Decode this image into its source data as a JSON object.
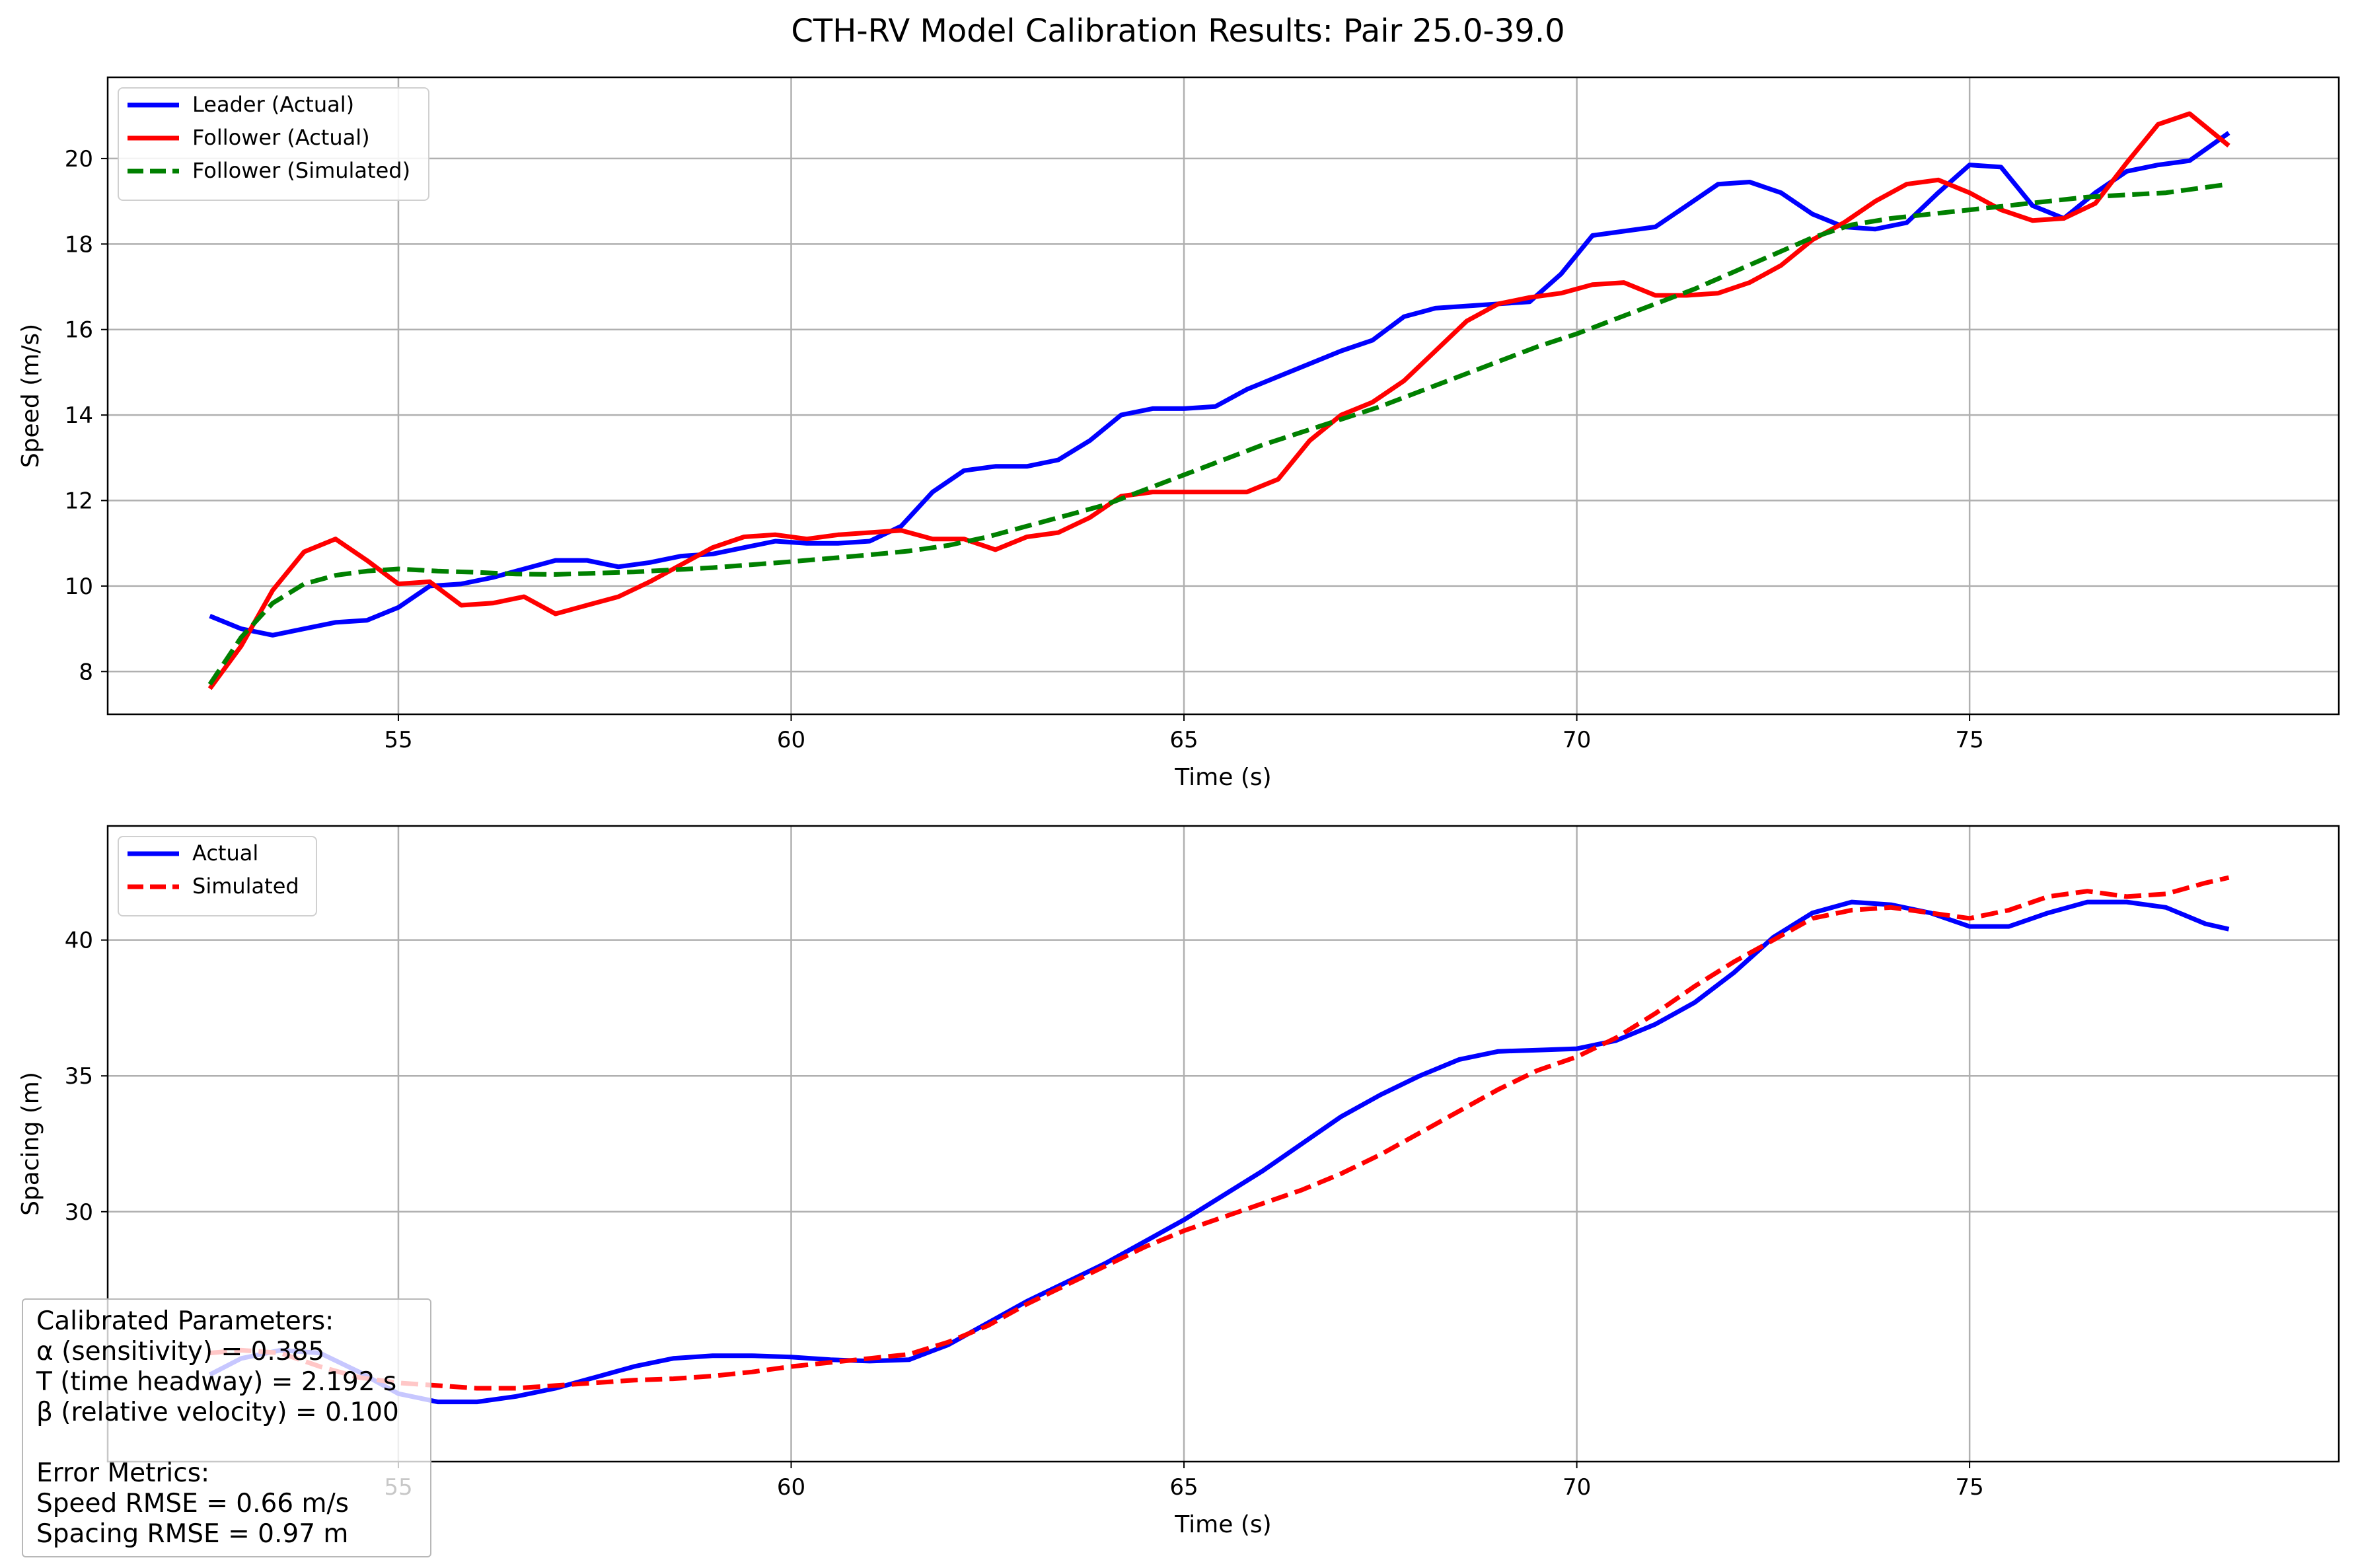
{
  "title": "CTH-RV Model Calibration Results: Pair 25.0-39.0",
  "chart_data": [
    {
      "type": "line",
      "xlabel": "Time (s)",
      "ylabel": "Speed (m/s)",
      "xlim": [
        51.3,
        79.7
      ],
      "ylim": [
        7.0,
        21.9
      ],
      "xticks": [
        55,
        60,
        65,
        70,
        75
      ],
      "yticks": [
        8,
        10,
        12,
        14,
        16,
        18,
        20
      ],
      "grid": true,
      "legend_position": "top-left",
      "series": [
        {
          "name": "Leader (Actual)",
          "color": "#0000ff",
          "dash": "solid",
          "x": [
            52.6,
            53.0,
            53.4,
            53.8,
            54.2,
            54.6,
            55.0,
            55.4,
            55.8,
            56.2,
            56.6,
            57.0,
            57.4,
            57.8,
            58.2,
            58.6,
            59.0,
            59.4,
            59.8,
            60.2,
            60.6,
            61.0,
            61.4,
            61.8,
            62.2,
            62.6,
            63.0,
            63.4,
            63.8,
            64.2,
            64.6,
            65.0,
            65.4,
            65.8,
            66.2,
            66.6,
            67.0,
            67.4,
            67.8,
            68.2,
            68.6,
            69.0,
            69.4,
            69.8,
            70.2,
            70.6,
            71.0,
            71.4,
            71.8,
            72.2,
            72.6,
            73.0,
            73.4,
            73.8,
            74.2,
            74.6,
            75.0,
            75.4,
            75.8,
            76.2,
            76.6,
            77.0,
            77.4,
            77.8,
            78.3
          ],
          "values": [
            9.3,
            9.0,
            8.85,
            9.0,
            9.15,
            9.2,
            9.5,
            10.0,
            10.05,
            10.2,
            10.4,
            10.6,
            10.6,
            10.45,
            10.55,
            10.7,
            10.75,
            10.9,
            11.05,
            11.0,
            11.0,
            11.05,
            11.4,
            12.2,
            12.7,
            12.8,
            12.8,
            12.95,
            13.4,
            14.0,
            14.15,
            14.15,
            14.2,
            14.6,
            14.9,
            15.2,
            15.5,
            15.75,
            16.3,
            16.5,
            16.55,
            16.6,
            16.65,
            17.3,
            18.2,
            18.3,
            18.4,
            18.9,
            19.4,
            19.45,
            19.2,
            18.7,
            18.4,
            18.35,
            18.5,
            19.2,
            19.85,
            19.8,
            18.9,
            18.6,
            19.2,
            19.7,
            19.85,
            19.95,
            20.6
          ]
        },
        {
          "name": "Follower (Actual)",
          "color": "#ff0000",
          "dash": "solid",
          "x": [
            52.6,
            53.0,
            53.4,
            53.8,
            54.2,
            54.6,
            55.0,
            55.4,
            55.8,
            56.2,
            56.6,
            57.0,
            57.4,
            57.8,
            58.2,
            58.6,
            59.0,
            59.4,
            59.8,
            60.2,
            60.6,
            61.0,
            61.4,
            61.8,
            62.2,
            62.6,
            63.0,
            63.4,
            63.8,
            64.2,
            64.6,
            65.0,
            65.4,
            65.8,
            66.2,
            66.6,
            67.0,
            67.4,
            67.8,
            68.2,
            68.6,
            69.0,
            69.4,
            69.8,
            70.2,
            70.6,
            71.0,
            71.4,
            71.8,
            72.2,
            72.6,
            73.0,
            73.4,
            73.8,
            74.2,
            74.6,
            75.0,
            75.4,
            75.8,
            76.2,
            76.6,
            77.0,
            77.4,
            77.8,
            78.3
          ],
          "values": [
            7.6,
            8.6,
            9.9,
            10.8,
            11.1,
            10.6,
            10.05,
            10.1,
            9.55,
            9.6,
            9.75,
            9.35,
            9.55,
            9.75,
            10.1,
            10.5,
            10.9,
            11.15,
            11.2,
            11.1,
            11.2,
            11.25,
            11.3,
            11.1,
            11.1,
            10.85,
            11.15,
            11.25,
            11.6,
            12.1,
            12.2,
            12.2,
            12.2,
            12.2,
            12.5,
            13.4,
            14.0,
            14.3,
            14.8,
            15.5,
            16.2,
            16.6,
            16.75,
            16.85,
            17.05,
            17.1,
            16.8,
            16.8,
            16.85,
            17.1,
            17.5,
            18.1,
            18.5,
            19.0,
            19.4,
            19.5,
            19.2,
            18.8,
            18.55,
            18.6,
            18.95,
            19.9,
            20.8,
            21.05,
            20.3
          ]
        },
        {
          "name": "Follower (Simulated)",
          "color": "#008000",
          "dash": "dashed",
          "x": [
            52.6,
            53.0,
            53.4,
            53.8,
            54.2,
            54.6,
            55.0,
            55.5,
            56.0,
            56.5,
            57.0,
            57.5,
            58.0,
            58.5,
            59.0,
            59.5,
            60.0,
            60.5,
            61.0,
            61.5,
            62.0,
            62.5,
            63.0,
            63.5,
            64.0,
            64.5,
            65.0,
            65.5,
            66.0,
            66.5,
            67.0,
            67.5,
            68.0,
            68.5,
            69.0,
            69.5,
            70.0,
            70.5,
            71.0,
            71.5,
            72.0,
            72.5,
            73.0,
            73.5,
            74.0,
            74.5,
            75.0,
            75.5,
            76.0,
            76.5,
            77.0,
            77.5,
            78.3
          ],
          "values": [
            7.7,
            8.8,
            9.6,
            10.05,
            10.25,
            10.35,
            10.4,
            10.35,
            10.32,
            10.28,
            10.27,
            10.3,
            10.33,
            10.38,
            10.43,
            10.5,
            10.57,
            10.65,
            10.73,
            10.82,
            10.95,
            11.15,
            11.4,
            11.65,
            11.9,
            12.25,
            12.6,
            12.95,
            13.3,
            13.6,
            13.9,
            14.2,
            14.55,
            14.9,
            15.25,
            15.6,
            15.9,
            16.25,
            16.6,
            16.95,
            17.35,
            17.75,
            18.15,
            18.45,
            18.6,
            18.7,
            18.8,
            18.9,
            19.0,
            19.1,
            19.15,
            19.2,
            19.4
          ]
        }
      ]
    },
    {
      "type": "line",
      "xlabel": "Time (s)",
      "ylabel": "Spacing (m)",
      "xlim": [
        51.3,
        79.7
      ],
      "ylim": [
        20.8,
        44.2
      ],
      "xticks": [
        55,
        60,
        65,
        70,
        75
      ],
      "yticks": [
        30,
        35,
        40
      ],
      "grid": true,
      "legend_position": "top-left",
      "series": [
        {
          "name": "Actual",
          "color": "#0000ff",
          "dash": "solid",
          "x": [
            52.6,
            53.0,
            53.5,
            54.0,
            54.5,
            55.0,
            55.5,
            56.0,
            56.5,
            57.0,
            57.5,
            58.0,
            58.5,
            59.0,
            59.5,
            60.0,
            60.5,
            61.0,
            61.5,
            62.0,
            62.5,
            63.0,
            63.5,
            64.0,
            64.5,
            65.0,
            65.5,
            66.0,
            66.5,
            67.0,
            67.5,
            68.0,
            68.5,
            69.0,
            69.5,
            70.0,
            70.5,
            71.0,
            71.5,
            72.0,
            72.5,
            73.0,
            73.5,
            74.0,
            74.5,
            75.0,
            75.5,
            76.0,
            76.5,
            77.0,
            77.5,
            78.0,
            78.3
          ],
          "values": [
            24.0,
            24.6,
            24.9,
            24.8,
            24.1,
            23.3,
            23.0,
            23.0,
            23.2,
            23.5,
            23.9,
            24.3,
            24.6,
            24.7,
            24.7,
            24.65,
            24.55,
            24.5,
            24.55,
            25.1,
            25.9,
            26.7,
            27.4,
            28.1,
            28.9,
            29.7,
            30.6,
            31.5,
            32.5,
            33.5,
            34.3,
            35.0,
            35.6,
            35.9,
            35.95,
            36.0,
            36.3,
            36.9,
            37.7,
            38.8,
            40.1,
            41.0,
            41.4,
            41.3,
            41.0,
            40.5,
            40.5,
            41.0,
            41.4,
            41.4,
            41.2,
            40.6,
            40.4
          ]
        },
        {
          "name": "Simulated",
          "color": "#ff0000",
          "dash": "dashed",
          "x": [
            52.6,
            53.0,
            53.5,
            54.0,
            54.5,
            55.0,
            55.5,
            56.0,
            56.5,
            57.0,
            57.5,
            58.0,
            58.5,
            59.0,
            59.5,
            60.0,
            60.5,
            61.0,
            61.5,
            62.0,
            62.5,
            63.0,
            63.5,
            64.0,
            64.5,
            65.0,
            65.5,
            66.0,
            66.5,
            67.0,
            67.5,
            68.0,
            68.5,
            69.0,
            69.5,
            70.0,
            70.5,
            71.0,
            71.5,
            72.0,
            72.5,
            73.0,
            73.5,
            74.0,
            74.5,
            75.0,
            75.5,
            76.0,
            76.5,
            77.0,
            77.5,
            78.0,
            78.3
          ],
          "values": [
            24.8,
            24.9,
            24.8,
            24.3,
            23.9,
            23.7,
            23.6,
            23.5,
            23.5,
            23.6,
            23.7,
            23.8,
            23.85,
            23.95,
            24.1,
            24.3,
            24.45,
            24.6,
            24.75,
            25.2,
            25.8,
            26.6,
            27.3,
            28.0,
            28.7,
            29.3,
            29.8,
            30.3,
            30.8,
            31.4,
            32.1,
            32.9,
            33.7,
            34.5,
            35.2,
            35.7,
            36.4,
            37.3,
            38.3,
            39.2,
            40.0,
            40.8,
            41.1,
            41.2,
            41.0,
            40.8,
            41.1,
            41.6,
            41.8,
            41.6,
            41.7,
            42.1,
            42.3
          ]
        }
      ]
    }
  ],
  "info_box": {
    "lines": [
      "Calibrated Parameters:",
      "α (sensitivity) = 0.385",
      "T (time headway) = 2.192 s",
      "β (relative velocity) = 0.100",
      "",
      "Error Metrics:",
      "Speed RMSE = 0.66 m/s",
      "Spacing RMSE = 0.97 m"
    ]
  }
}
